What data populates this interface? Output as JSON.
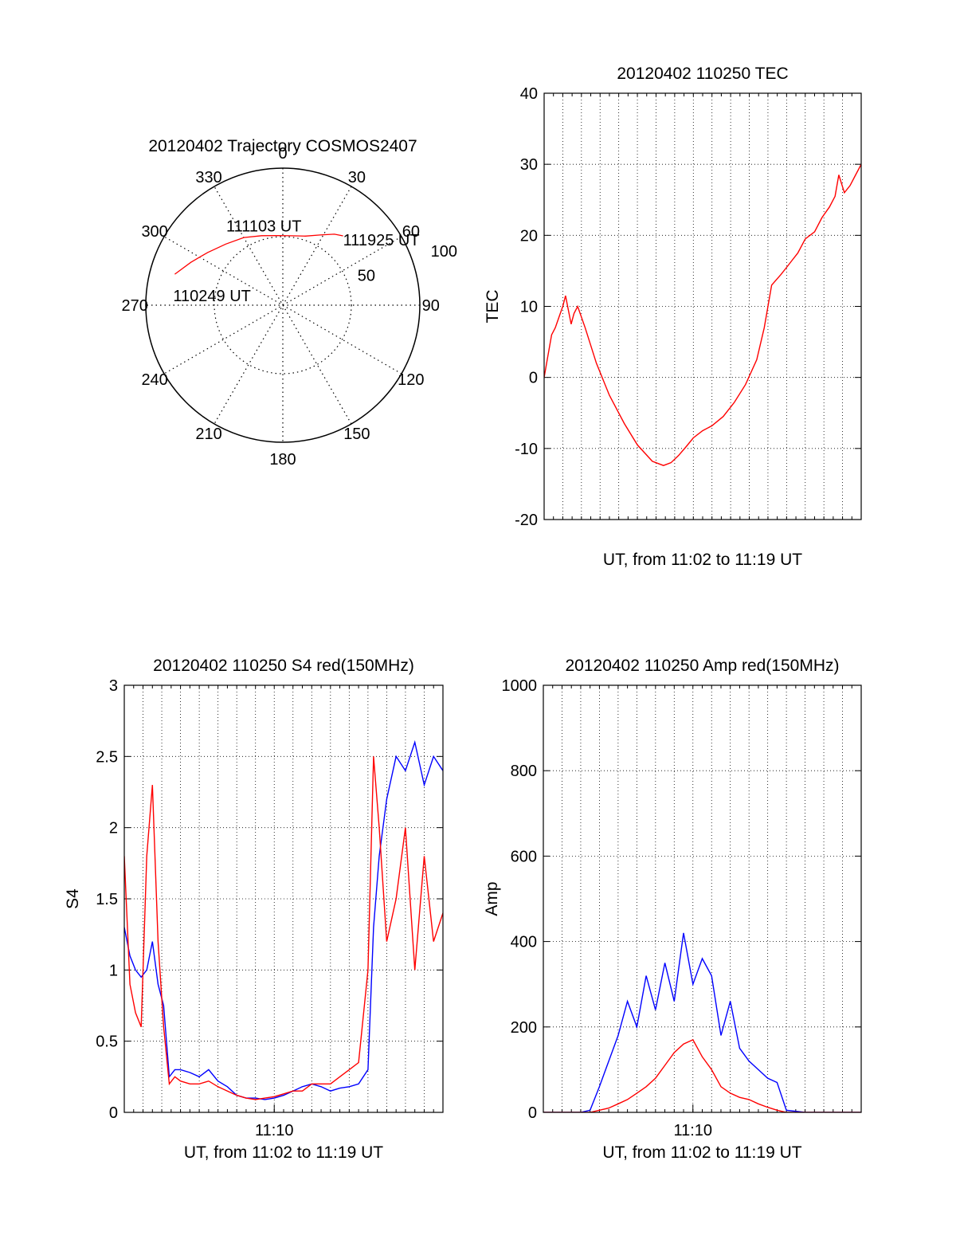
{
  "chart_data": [
    {
      "id": "polar",
      "type": "scatter",
      "subtype": "polar-trajectory",
      "title": "20120402 Trajectory COSMOS2407",
      "azimuth_ticks": [
        "0",
        "30",
        "60",
        "90",
        "120",
        "150",
        "180",
        "210",
        "240",
        "270",
        "300",
        "330"
      ],
      "radial_ticks": [
        "50",
        "100"
      ],
      "radial_range": [
        0,
        100
      ],
      "grid": true,
      "series": [
        {
          "color": "#ff0000",
          "points": [
            {
              "az": 286,
              "r": 82
            },
            {
              "az": 295,
              "r": 74
            },
            {
              "az": 305,
              "r": 67
            },
            {
              "az": 317,
              "r": 61
            },
            {
              "az": 330,
              "r": 57
            },
            {
              "az": 343,
              "r": 53
            },
            {
              "az": 355,
              "r": 51
            },
            {
              "az": 7,
              "r": 51
            },
            {
              "az": 18,
              "r": 53
            },
            {
              "az": 28,
              "r": 58
            },
            {
              "az": 36,
              "r": 64
            },
            {
              "az": 41,
              "r": 67
            }
          ]
        }
      ],
      "annotations": [
        {
          "text": "111925 UT",
          "az": 41,
          "r": 67
        },
        {
          "text": "111103 UT",
          "az": 346,
          "r": 53
        },
        {
          "text": "110249 UT",
          "az": 286,
          "r": 82
        }
      ]
    },
    {
      "id": "tec",
      "type": "line",
      "title": "20120402 110250 TEC",
      "xlabel": "UT, from 11:02 to 11:19 UT",
      "ylabel": "TEC",
      "ylim": [
        -20,
        40
      ],
      "yticks": [
        "-20",
        "-10",
        "0",
        "10",
        "20",
        "30",
        "40"
      ],
      "xlim": [
        0,
        17
      ],
      "grid": true,
      "series": [
        {
          "color": "#ff0000",
          "x": [
            0.0,
            0.2,
            0.4,
            0.6,
            0.8,
            1.0,
            1.15,
            1.3,
            1.45,
            1.6,
            1.8,
            2.2,
            2.8,
            3.5,
            4.3,
            5.0,
            5.8,
            6.4,
            6.8,
            7.2,
            7.6,
            8.0,
            8.5,
            9.0,
            9.6,
            10.2,
            10.8,
            11.4,
            11.8,
            12.2,
            12.7,
            13.0,
            13.3,
            13.6,
            14.0,
            14.5,
            14.9,
            15.3,
            15.6,
            15.8,
            16.1,
            16.4,
            16.7,
            17.0
          ],
          "y": [
            0,
            3,
            6,
            7,
            8.5,
            10,
            11.5,
            9.5,
            7.5,
            9,
            10,
            7,
            2,
            -2.5,
            -6.5,
            -9.5,
            -11.8,
            -12.4,
            -12,
            -11,
            -9.8,
            -8.5,
            -7.5,
            -6.8,
            -5.5,
            -3.5,
            -1,
            2.5,
            7,
            13,
            14.5,
            15.5,
            16.5,
            17.5,
            19.5,
            20.5,
            22.5,
            24,
            25.5,
            28.5,
            26,
            27,
            28.5,
            30
          ]
        }
      ]
    },
    {
      "id": "s4",
      "type": "line",
      "title": "20120402 110250 S4 red(150MHz)",
      "xlabel": "UT, from 11:02 to 11:19 UT",
      "ylabel": "S4",
      "xtick_labels": [
        "11:10"
      ],
      "ylim": [
        0,
        3
      ],
      "yticks": [
        "0",
        "0.5",
        "1",
        "1.5",
        "2",
        "2.5",
        "3"
      ],
      "xlim": [
        0,
        17
      ],
      "grid": true,
      "series": [
        {
          "color": "#0000ff",
          "x": [
            0.0,
            0.3,
            0.6,
            0.9,
            1.2,
            1.5,
            1.8,
            2.1,
            2.4,
            2.7,
            3.0,
            3.5,
            4.0,
            4.5,
            5.0,
            5.5,
            6.0,
            6.5,
            7.0,
            7.5,
            8.0,
            8.5,
            9.0,
            9.5,
            10.0,
            10.5,
            11.0,
            11.5,
            12.0,
            12.5,
            13.0,
            13.3,
            13.6,
            14.0,
            14.5,
            15.0,
            15.5,
            16.0,
            16.5,
            17.0
          ],
          "y": [
            1.3,
            1.1,
            1.0,
            0.95,
            1.0,
            1.2,
            0.9,
            0.75,
            0.25,
            0.3,
            0.3,
            0.28,
            0.25,
            0.3,
            0.22,
            0.18,
            0.12,
            0.1,
            0.1,
            0.09,
            0.1,
            0.12,
            0.15,
            0.18,
            0.2,
            0.18,
            0.15,
            0.17,
            0.18,
            0.2,
            0.3,
            1.3,
            1.8,
            2.2,
            2.5,
            2.4,
            2.6,
            2.3,
            2.5,
            2.4
          ]
        },
        {
          "color": "#ff0000",
          "x": [
            0.0,
            0.3,
            0.6,
            0.9,
            1.2,
            1.5,
            1.8,
            2.1,
            2.4,
            2.7,
            3.0,
            3.5,
            4.0,
            4.5,
            5.0,
            5.5,
            6.0,
            6.5,
            7.0,
            7.5,
            8.0,
            8.5,
            9.0,
            9.5,
            10.0,
            10.5,
            11.0,
            11.5,
            12.0,
            12.5,
            13.0,
            13.3,
            13.6,
            14.0,
            14.5,
            15.0,
            15.5,
            16.0,
            16.5,
            17.0
          ],
          "y": [
            1.8,
            0.9,
            0.7,
            0.6,
            1.8,
            2.3,
            1.2,
            0.6,
            0.2,
            0.25,
            0.22,
            0.2,
            0.2,
            0.22,
            0.18,
            0.15,
            0.12,
            0.1,
            0.09,
            0.1,
            0.11,
            0.13,
            0.15,
            0.15,
            0.2,
            0.2,
            0.2,
            0.25,
            0.3,
            0.35,
            1.0,
            2.5,
            2.0,
            1.2,
            1.5,
            2.0,
            1.0,
            1.8,
            1.2,
            1.4
          ]
        }
      ]
    },
    {
      "id": "amp",
      "type": "line",
      "title": "20120402 110250 Amp red(150MHz)",
      "xlabel": "UT, from 11:02 to 11:19 UT",
      "ylabel": "Amp",
      "xtick_labels": [
        "11:10"
      ],
      "ylim": [
        0,
        1000
      ],
      "yticks": [
        "0",
        "200",
        "400",
        "600",
        "800",
        "1000"
      ],
      "xlim": [
        0,
        17
      ],
      "grid": true,
      "series": [
        {
          "color": "#0000ff",
          "x": [
            0.0,
            1.0,
            2.0,
            2.5,
            3.0,
            3.5,
            4.0,
            4.5,
            5.0,
            5.5,
            6.0,
            6.5,
            7.0,
            7.5,
            8.0,
            8.5,
            9.0,
            9.5,
            10.0,
            10.5,
            11.0,
            11.5,
            12.0,
            12.5,
            13.0,
            14.0,
            15.0,
            16.0,
            17.0
          ],
          "y": [
            0,
            0,
            0,
            5,
            60,
            120,
            180,
            260,
            200,
            320,
            240,
            350,
            260,
            420,
            300,
            360,
            320,
            180,
            260,
            150,
            120,
            100,
            80,
            70,
            5,
            0,
            0,
            0,
            0
          ]
        },
        {
          "color": "#ff0000",
          "x": [
            0.0,
            1.0,
            2.0,
            2.5,
            3.0,
            3.5,
            4.0,
            4.5,
            5.0,
            5.5,
            6.0,
            6.5,
            7.0,
            7.5,
            8.0,
            8.5,
            9.0,
            9.5,
            10.0,
            10.5,
            11.0,
            11.5,
            12.0,
            12.5,
            13.0,
            14.0,
            15.0,
            16.0,
            17.0
          ],
          "y": [
            0,
            0,
            0,
            0,
            5,
            10,
            20,
            30,
            45,
            60,
            80,
            110,
            140,
            160,
            170,
            130,
            100,
            60,
            45,
            35,
            30,
            20,
            12,
            5,
            0,
            0,
            0,
            0,
            0
          ]
        }
      ]
    }
  ]
}
